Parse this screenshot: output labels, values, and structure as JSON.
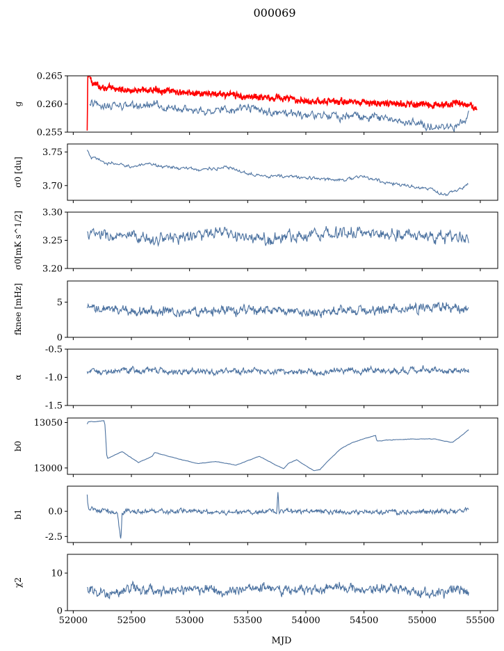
{
  "figure_title": "000069",
  "xlabel": "MJD",
  "colors": {
    "series": "#4c72a0",
    "gain": "#ff0000",
    "axis": "#000000"
  },
  "chart_data": [
    {
      "type": "line",
      "ylabel": "g",
      "xlim": [
        51950,
        55650
      ],
      "ylim": [
        0.255,
        0.265
      ],
      "yticks": [
        "0.255",
        "0.260",
        "0.265"
      ],
      "ytick_values": [
        0.255,
        0.26,
        0.265
      ],
      "series": [
        {
          "color": "#ff0000",
          "x": [
            52120,
            52125,
            52140,
            52160,
            52200,
            52300,
            52500,
            52750,
            52900,
            53100,
            53300,
            53500,
            53700,
            53900,
            54100,
            54300,
            54500,
            54700,
            54900,
            55050,
            55150,
            55300,
            55400,
            55470
          ],
          "y": [
            0.255,
            0.265,
            0.265,
            0.264,
            0.2633,
            0.2628,
            0.2624,
            0.2625,
            0.262,
            0.2618,
            0.2617,
            0.2613,
            0.2612,
            0.2608,
            0.2605,
            0.2604,
            0.2603,
            0.26,
            0.2601,
            0.2598,
            0.2597,
            0.2603,
            0.2598,
            0.2588
          ]
        },
        {
          "color": "#4c72a0",
          "x": [
            52140,
            52300,
            52500,
            52700,
            52900,
            53100,
            53300,
            53500,
            53700,
            53900,
            54100,
            54300,
            54500,
            54700,
            54900,
            55100,
            55250,
            55400
          ],
          "y": [
            0.26,
            0.2597,
            0.2596,
            0.2597,
            0.2593,
            0.2588,
            0.259,
            0.2593,
            0.2585,
            0.258,
            0.2579,
            0.2577,
            0.258,
            0.2574,
            0.2566,
            0.2561,
            0.2558,
            0.2578
          ]
        }
      ]
    },
    {
      "type": "line",
      "ylabel": "σ0 [du]",
      "xlim": [
        51950,
        55650
      ],
      "ylim": [
        3.678,
        3.762
      ],
      "yticks": [
        "3.70",
        "3.75"
      ],
      "ytick_values": [
        3.7,
        3.75
      ],
      "series": [
        {
          "color": "#4c72a0",
          "x": [
            52120,
            52150,
            52300,
            52500,
            52700,
            52900,
            53100,
            53300,
            53500,
            53700,
            53900,
            54100,
            54300,
            54500,
            54700,
            54900,
            55100,
            55200,
            55400
          ],
          "y": [
            3.752,
            3.742,
            3.733,
            3.729,
            3.731,
            3.726,
            3.724,
            3.727,
            3.719,
            3.714,
            3.713,
            3.71,
            3.709,
            3.713,
            3.704,
            3.699,
            3.693,
            3.685,
            3.702
          ]
        }
      ]
    },
    {
      "type": "line",
      "ylabel": "σ0[mK s^1/2]",
      "xlim": [
        51950,
        55650
      ],
      "ylim": [
        3.2,
        3.3
      ],
      "yticks": [
        "3.20",
        "3.25",
        "3.30"
      ],
      "ytick_values": [
        3.2,
        3.25,
        3.3
      ],
      "series": [
        {
          "color": "#4c72a0",
          "x": [
            52120,
            52400,
            52700,
            53000,
            53300,
            53600,
            53900,
            54200,
            54500,
            54800,
            55100,
            55400
          ],
          "y": [
            3.262,
            3.255,
            3.252,
            3.258,
            3.262,
            3.25,
            3.258,
            3.265,
            3.262,
            3.262,
            3.255,
            3.255
          ]
        }
      ]
    },
    {
      "type": "line",
      "ylabel": "fknee [mHz]",
      "xlim": [
        51950,
        55650
      ],
      "ylim": [
        0,
        8
      ],
      "yticks": [
        "0",
        "5"
      ],
      "ytick_values": [
        0,
        5
      ],
      "series": [
        {
          "color": "#4c72a0",
          "x": [
            52120,
            52500,
            53000,
            53500,
            54000,
            54500,
            55000,
            55400
          ],
          "y": [
            4.0,
            3.8,
            3.6,
            3.9,
            3.5,
            3.8,
            4.2,
            4.3
          ]
        }
      ]
    },
    {
      "type": "line",
      "ylabel": "α",
      "xlim": [
        51950,
        55650
      ],
      "ylim": [
        -1.5,
        -0.5
      ],
      "yticks": [
        "-1.5",
        "-1.0",
        "-0.5"
      ],
      "ytick_values": [
        -1.5,
        -1.0,
        -0.5
      ],
      "series": [
        {
          "color": "#4c72a0",
          "x": [
            52120,
            52500,
            53000,
            53500,
            54000,
            54500,
            55000,
            55400
          ],
          "y": [
            -0.9,
            -0.88,
            -0.9,
            -0.89,
            -0.9,
            -0.88,
            -0.87,
            -0.88
          ]
        }
      ]
    },
    {
      "type": "line",
      "ylabel": "b0",
      "xlim": [
        51950,
        55650
      ],
      "ylim": [
        12993,
        13055
      ],
      "yticks": [
        "13000",
        "13050"
      ],
      "ytick_values": [
        13000,
        13050
      ],
      "series": [
        {
          "color": "#4c72a0",
          "x": [
            52120,
            52130,
            52200,
            52270,
            52280,
            52290,
            52420,
            52560,
            52680,
            52700,
            52900,
            53070,
            53230,
            53400,
            53600,
            53730,
            53810,
            53850,
            53920,
            54070,
            54120,
            54200,
            54300,
            54400,
            54500,
            54600,
            54610,
            54900,
            55100,
            55260,
            55400
          ],
          "y": [
            13048,
            13051,
            13051,
            13052,
            13032,
            13010,
            13018,
            13006,
            13013,
            13017,
            13010,
            13005,
            13007,
            13003,
            13013,
            13004,
            12999,
            13005,
            13009,
            12997,
            12998,
            13009,
            13021,
            13028,
            13032,
            13036,
            13030,
            13032,
            13032,
            13028,
            13042
          ]
        }
      ]
    },
    {
      "type": "line",
      "ylabel": "b1",
      "xlim": [
        51950,
        55650
      ],
      "ylim": [
        -3.1,
        2.5
      ],
      "yticks": [
        "-2.5",
        "0.0"
      ],
      "ytick_values": [
        -2.5,
        0.0
      ],
      "series": [
        {
          "color": "#4c72a0",
          "x": [
            52120,
            52130,
            52200,
            52300,
            52380,
            52410,
            52420,
            52440,
            52500,
            53000,
            53500,
            53750,
            53760,
            53770,
            54000,
            54500,
            55000,
            55200,
            55400
          ],
          "y": [
            1.5,
            0.3,
            0.1,
            0.0,
            -0.3,
            -2.8,
            -0.2,
            0.1,
            0.0,
            0.0,
            -0.1,
            0.0,
            2.2,
            0.0,
            0.0,
            -0.1,
            0.0,
            0.0,
            0.1
          ]
        }
      ]
    },
    {
      "type": "line",
      "ylabel": "χ2",
      "xlim": [
        51950,
        55650
      ],
      "ylim": [
        0,
        15
      ],
      "yticks": [
        "0",
        "10"
      ],
      "ytick_values": [
        0,
        10
      ],
      "series": [
        {
          "color": "#4c72a0",
          "x": [
            52120,
            52300,
            52500,
            52700,
            52900,
            53100,
            53300,
            53500,
            53700,
            53900,
            54100,
            54300,
            54500,
            54700,
            54900,
            55100,
            55300,
            55400
          ],
          "y": [
            5.5,
            4.5,
            6.0,
            5.0,
            5.5,
            6.0,
            5.0,
            6.5,
            5.5,
            6.0,
            5.0,
            7.0,
            5.5,
            6.0,
            5.0,
            4.5,
            5.5,
            5.0
          ]
        }
      ]
    }
  ],
  "xticks": [
    "52000",
    "52500",
    "53000",
    "53500",
    "54000",
    "54500",
    "55000",
    "55500"
  ],
  "xtick_values": [
    52000,
    52500,
    53000,
    53500,
    54000,
    54500,
    55000,
    55500
  ]
}
